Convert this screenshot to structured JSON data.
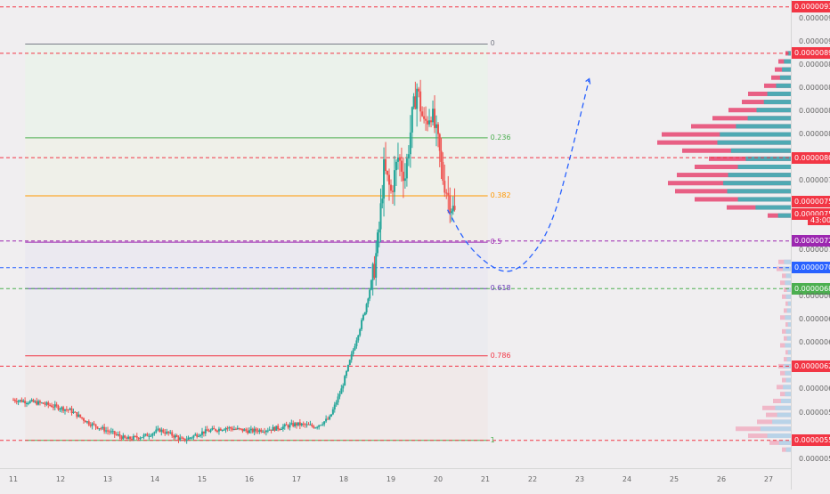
{
  "chart_data": {
    "type": "candlestick",
    "x_ticks": [
      "11",
      "12",
      "13",
      "14",
      "15",
      "16",
      "17",
      "18",
      "19",
      "20",
      "21",
      "22",
      "23",
      "24",
      "25",
      "26",
      "27"
    ],
    "y_ticks": [
      "0.00000920",
      "0.00000900",
      "0.00000880",
      "0.00000860",
      "0.00000840",
      "0.00000820",
      "0.00000780",
      "0.00000760",
      "0.00000720",
      "0.00000680",
      "0.00000660",
      "0.00000640",
      "0.00000600",
      "0.00000580",
      "0.00000540"
    ],
    "ylim": [
      5.32e-06,
      9.36e-06
    ],
    "xlim": [
      11,
      27.6
    ],
    "fibonacci": {
      "top": 8.98e-06,
      "bottom": 5.56e-06,
      "x_start": 11.25,
      "x_end": 21.05,
      "levels": [
        {
          "label": "0",
          "value": 8.98e-06,
          "color": "#787b86"
        },
        {
          "label": "0.236",
          "value": 8.17e-06,
          "color": "#4caf50"
        },
        {
          "label": "0.382",
          "value": 7.67e-06,
          "color": "#ff9800"
        },
        {
          "label": "0.5",
          "value": 7.27e-06,
          "color": "#9c27b0"
        },
        {
          "label": "0.618",
          "value": 6.87e-06,
          "color": "#673ab7"
        },
        {
          "label": "0.786",
          "value": 6.29e-06,
          "color": "#f23645"
        },
        {
          "label": "1",
          "value": 5.56e-06,
          "color": "#4caf50"
        }
      ]
    },
    "horizontal_levels": [
      {
        "label": "0.00000930",
        "value": 9.3e-06,
        "color": "#f23645"
      },
      {
        "label": "0.00000890",
        "value": 8.9e-06,
        "color": "#f23645"
      },
      {
        "label": "0.00000800",
        "value": 8e-06,
        "color": "#f23645"
      },
      {
        "label": "0.00000728",
        "value": 7.28e-06,
        "color": "#9c27b0"
      },
      {
        "label": "0.00000705",
        "value": 7.05e-06,
        "color": "#2962ff"
      },
      {
        "label": "0.00000687",
        "value": 6.87e-06,
        "color": "#4caf50"
      },
      {
        "label": "0.00000620",
        "value": 6.2e-06,
        "color": "#f23645"
      },
      {
        "label": "0.00000556",
        "value": 5.56e-06,
        "color": "#f23645"
      }
    ],
    "badges": [
      {
        "label": "0.00000758",
        "value": 7.58e-06,
        "color": "#f23645"
      },
      {
        "label": "0.00000756",
        "value": 7.56e-06,
        "color": "#f23645"
      }
    ],
    "countdown": "43:00",
    "projection": [
      [
        20.2,
        7.55e-06
      ],
      [
        20.6,
        7.25e-06
      ],
      [
        21.1,
        7.06e-06
      ],
      [
        21.5,
        7e-06
      ],
      [
        21.9,
        7.1e-06
      ],
      [
        22.4,
        7.4e-06
      ],
      [
        22.8,
        8e-06
      ],
      [
        23.2,
        8.68e-06
      ]
    ],
    "price_path": [
      [
        11.0,
        5.91e-06
      ],
      [
        11.6,
        5.88e-06
      ],
      [
        12.2,
        5.82e-06
      ],
      [
        12.6,
        5.71e-06
      ],
      [
        13.0,
        5.64e-06
      ],
      [
        13.4,
        5.57e-06
      ],
      [
        13.8,
        5.6e-06
      ],
      [
        14.1,
        5.65e-06
      ],
      [
        14.4,
        5.6e-06
      ],
      [
        14.6,
        5.56e-06
      ],
      [
        15.0,
        5.63e-06
      ],
      [
        15.5,
        5.67e-06
      ],
      [
        16.0,
        5.64e-06
      ],
      [
        16.5,
        5.66e-06
      ],
      [
        17.0,
        5.7e-06
      ],
      [
        17.4,
        5.68e-06
      ],
      [
        17.7,
        5.75e-06
      ],
      [
        17.95,
        6e-06
      ],
      [
        18.2,
        6.34e-06
      ],
      [
        18.45,
        6.68e-06
      ],
      [
        18.65,
        7.05e-06
      ],
      [
        18.75,
        7.38e-06
      ],
      [
        18.85,
        7.9e-06
      ],
      [
        19.0,
        7.7e-06
      ],
      [
        19.15,
        8e-06
      ],
      [
        19.3,
        7.84e-06
      ],
      [
        19.45,
        8.35e-06
      ],
      [
        19.55,
        8.6e-06
      ],
      [
        19.7,
        8.28e-06
      ],
      [
        19.85,
        8.4e-06
      ],
      [
        20.0,
        8.12e-06
      ],
      [
        20.1,
        7.83e-06
      ],
      [
        20.25,
        7.62e-06
      ],
      [
        20.35,
        7.52e-06
      ]
    ],
    "volume_profile": {
      "bars": [
        [
          8.9e-06,
          6,
          0
        ],
        [
          8.83e-06,
          14,
          2
        ],
        [
          8.76e-06,
          18,
          5
        ],
        [
          8.69e-06,
          22,
          10
        ],
        [
          8.62e-06,
          30,
          16
        ],
        [
          8.55e-06,
          48,
          24
        ],
        [
          8.48e-06,
          55,
          30
        ],
        [
          8.41e-06,
          70,
          40
        ],
        [
          8.34e-06,
          88,
          55
        ],
        [
          8.27e-06,
          112,
          72
        ],
        [
          8.2e-06,
          145,
          88
        ],
        [
          8.13e-06,
          150,
          92
        ],
        [
          8.06e-06,
          122,
          86
        ],
        [
          7.99e-06,
          92,
          62
        ],
        [
          7.92e-06,
          108,
          68
        ],
        [
          7.85e-06,
          128,
          82
        ],
        [
          7.78e-06,
          138,
          90
        ],
        [
          7.71e-06,
          130,
          88
        ],
        [
          7.64e-06,
          108,
          70
        ],
        [
          7.57e-06,
          72,
          48
        ],
        [
          7.5e-06,
          26,
          10
        ],
        [
          7.1e-06,
          14,
          8
        ],
        [
          7.04e-06,
          16,
          10
        ],
        [
          6.98e-06,
          10,
          6
        ],
        [
          6.92e-06,
          12,
          4
        ],
        [
          6.86e-06,
          8,
          3
        ],
        [
          6.8e-06,
          10,
          4
        ],
        [
          6.74e-06,
          6,
          2
        ],
        [
          6.68e-06,
          8,
          2
        ],
        [
          6.62e-06,
          12,
          3
        ],
        [
          6.56e-06,
          6,
          2
        ],
        [
          6.5e-06,
          10,
          4
        ],
        [
          6.44e-06,
          8,
          2
        ],
        [
          6.38e-06,
          12,
          5
        ],
        [
          6.32e-06,
          6,
          2
        ],
        [
          6.26e-06,
          8,
          3
        ],
        [
          6.2e-06,
          14,
          5
        ],
        [
          6.14e-06,
          12,
          4
        ],
        [
          6.08e-06,
          10,
          4
        ],
        [
          6.02e-06,
          16,
          6
        ],
        [
          5.96e-06,
          12,
          4
        ],
        [
          5.9e-06,
          20,
          8
        ],
        [
          5.84e-06,
          32,
          14
        ],
        [
          5.78e-06,
          28,
          12
        ],
        [
          5.72e-06,
          38,
          20
        ],
        [
          5.66e-06,
          62,
          30
        ],
        [
          5.6e-06,
          48,
          22
        ],
        [
          5.54e-06,
          24,
          10
        ],
        [
          5.48e-06,
          10,
          4
        ]
      ]
    }
  }
}
